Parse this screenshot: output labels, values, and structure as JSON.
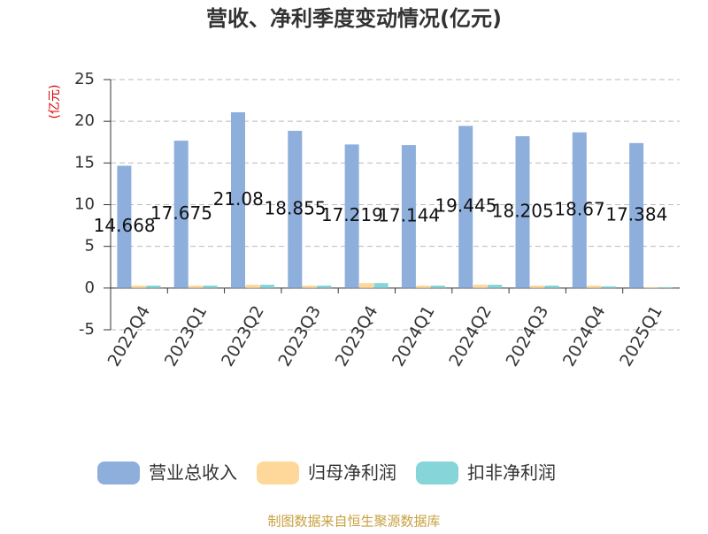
{
  "chart_data": {
    "type": "bar",
    "title": "营收、净利季度变动情况(亿元)",
    "y_label": "(亿元)",
    "source": "制图数据来自恒生聚源数据库",
    "categories": [
      "2022Q4",
      "2023Q1",
      "2023Q2",
      "2023Q3",
      "2023Q4",
      "2024Q1",
      "2024Q2",
      "2024Q3",
      "2024Q4",
      "2025Q1"
    ],
    "series": [
      {
        "name": "营业总收入",
        "color": "#8eaedc",
        "values": [
          14.668,
          17.675,
          21.08,
          18.855,
          17.219,
          17.144,
          19.445,
          18.205,
          18.67,
          17.384
        ],
        "show_labels": true
      },
      {
        "name": "归母净利润",
        "color": "#fdd89a",
        "values": [
          0.3,
          0.3,
          0.4,
          0.3,
          0.6,
          0.3,
          0.4,
          0.3,
          0.3,
          0.1
        ]
      },
      {
        "name": "扣非净利润",
        "color": "#86d5d8",
        "values": [
          0.3,
          0.3,
          0.4,
          0.3,
          0.6,
          0.3,
          0.4,
          0.3,
          0.2,
          0.1
        ]
      }
    ],
    "ylim": [
      -5,
      25
    ],
    "yticks": [
      -5,
      0,
      5,
      10,
      15,
      20,
      25
    ],
    "grid": true
  }
}
